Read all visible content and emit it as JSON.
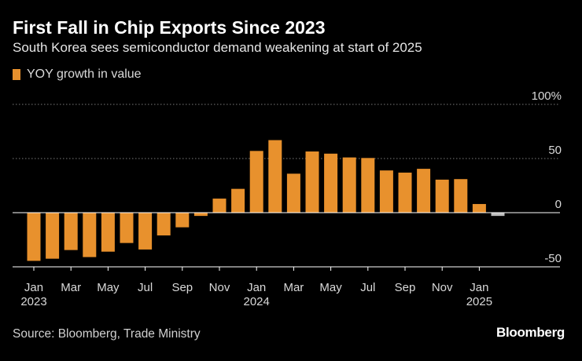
{
  "header": {
    "title": "First Fall in Chip Exports Since 2023",
    "subtitle": "South Korea sees semiconductor demand weakening at start of 2025"
  },
  "footer": {
    "source": "Source: Bloomberg, Trade Ministry",
    "brand": "Bloomberg"
  },
  "colors": {
    "positive": "#e8912d",
    "negative_latest": "#bdbdbd",
    "grid": "#7a7a7a",
    "axis": "#ffffff"
  },
  "chart_data": {
    "type": "bar",
    "title": "First Fall in Chip Exports Since 2023",
    "subtitle": "South Korea sees semiconductor demand weakening at start of 2025",
    "xlabel": "",
    "ylabel": "",
    "ylim": [
      -50,
      100
    ],
    "yticks": [
      {
        "value": 100,
        "label": "100%"
      },
      {
        "value": 50,
        "label": "50"
      },
      {
        "value": 0,
        "label": "0"
      },
      {
        "value": -50,
        "label": "-50"
      }
    ],
    "grid": true,
    "legend": [
      {
        "name": "YOY growth in value",
        "position": "top-left"
      }
    ],
    "categories": [
      "Jan 2023",
      "Feb 2023",
      "Mar 2023",
      "Apr 2023",
      "May 2023",
      "Jun 2023",
      "Jul 2023",
      "Aug 2023",
      "Sep 2023",
      "Oct 2023",
      "Nov 2023",
      "Dec 2023",
      "Jan 2024",
      "Feb 2024",
      "Mar 2024",
      "Apr 2024",
      "May 2024",
      "Jun 2024",
      "Jul 2024",
      "Aug 2024",
      "Sep 2024",
      "Oct 2024",
      "Nov 2024",
      "Dec 2024",
      "Jan 2025",
      "Feb 2025"
    ],
    "x_tick_labels": [
      {
        "index": 0,
        "month": "Jan",
        "year": "2023"
      },
      {
        "index": 2,
        "month": "Mar",
        "year": ""
      },
      {
        "index": 4,
        "month": "May",
        "year": ""
      },
      {
        "index": 6,
        "month": "Jul",
        "year": ""
      },
      {
        "index": 8,
        "month": "Sep",
        "year": ""
      },
      {
        "index": 10,
        "month": "Nov",
        "year": ""
      },
      {
        "index": 12,
        "month": "Jan",
        "year": "2024"
      },
      {
        "index": 14,
        "month": "Mar",
        "year": ""
      },
      {
        "index": 16,
        "month": "May",
        "year": ""
      },
      {
        "index": 18,
        "month": "Jul",
        "year": ""
      },
      {
        "index": 20,
        "month": "Sep",
        "year": ""
      },
      {
        "index": 22,
        "month": "Nov",
        "year": ""
      },
      {
        "index": 24,
        "month": "Jan",
        "year": "2025"
      }
    ],
    "series": [
      {
        "name": "YOY growth in value",
        "values": [
          -44.5,
          -42.5,
          -34.5,
          -41,
          -36,
          -28,
          -34,
          -21,
          -13.5,
          -3,
          13,
          22,
          57,
          67,
          36,
          56.5,
          54.5,
          51,
          50.5,
          39,
          37,
          40.5,
          30.5,
          31,
          8,
          -3
        ]
      }
    ]
  }
}
